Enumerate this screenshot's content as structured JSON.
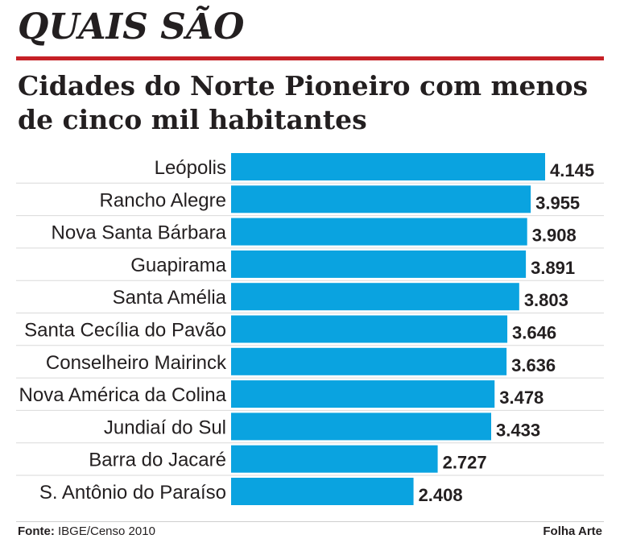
{
  "header": {
    "kicker": "QUAIS SÃO",
    "rule_color": "#c62026"
  },
  "footer": {
    "source_label": "Fonte:",
    "source_text": "IBGE/Censo 2010",
    "credit": "Folha Arte"
  },
  "chart_data": {
    "type": "bar",
    "orientation": "horizontal",
    "title": "Cidades do Norte Pioneiro com menos de cinco mil habitantes",
    "bar_color": "#0aa3e0",
    "categories": [
      "Leópolis",
      "Rancho Alegre",
      "Nova Santa Bárbara",
      "Guapirama",
      "Santa Amélia",
      "Santa Cecília do Pavão",
      "Conselheiro Mairinck",
      "Nova América da Colina",
      "Jundiaí do Sul",
      "Barra do Jacaré",
      "S. Antônio do Paraíso"
    ],
    "values": [
      4145,
      3955,
      3908,
      3891,
      3803,
      3646,
      3636,
      3478,
      3433,
      2727,
      2408
    ],
    "value_labels": [
      "4.145",
      "3.955",
      "3.908",
      "3.891",
      "3.803",
      "3.646",
      "3.636",
      "3.478",
      "3.433",
      "2.727",
      "2.408"
    ],
    "xlim": [
      0,
      4145
    ]
  }
}
